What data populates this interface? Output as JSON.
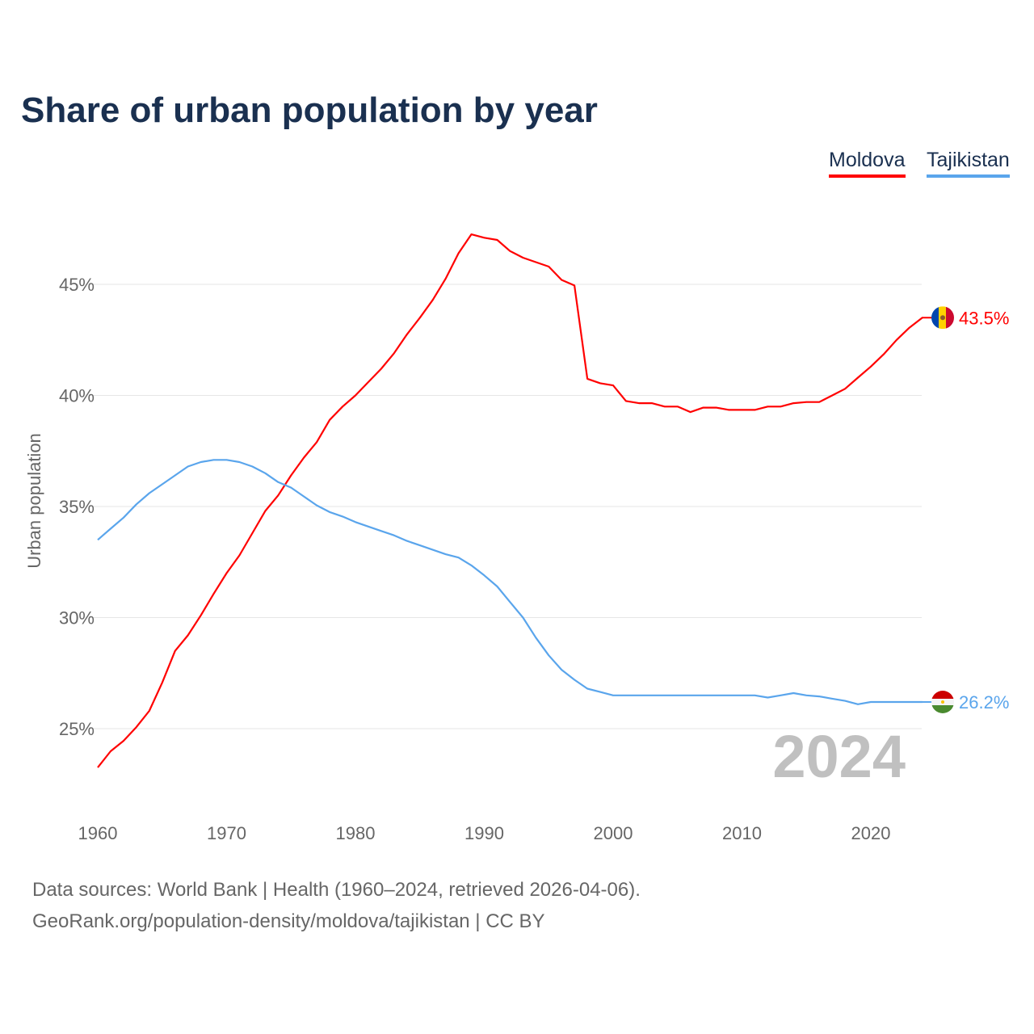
{
  "chart_data": {
    "type": "line",
    "title": "Share of urban population by year",
    "xlabel": "",
    "ylabel": "Urban population",
    "xlim": [
      1960,
      2024
    ],
    "ylim": [
      22,
      48
    ],
    "x_ticks": [
      "1960",
      "1970",
      "1980",
      "1990",
      "2000",
      "2010",
      "2020"
    ],
    "y_ticks": [
      "25%",
      "30%",
      "35%",
      "40%",
      "45%"
    ],
    "y_tick_values": [
      25,
      30,
      35,
      40,
      45
    ],
    "grid": true,
    "legend_placement": "top-right",
    "year_watermark": "2024",
    "x": [
      1960,
      1961,
      1962,
      1963,
      1964,
      1965,
      1966,
      1967,
      1968,
      1969,
      1970,
      1971,
      1972,
      1973,
      1974,
      1975,
      1976,
      1977,
      1978,
      1979,
      1980,
      1981,
      1982,
      1983,
      1984,
      1985,
      1986,
      1987,
      1988,
      1989,
      1990,
      1991,
      1992,
      1993,
      1994,
      1995,
      1996,
      1997,
      1998,
      1999,
      2000,
      2001,
      2002,
      2003,
      2004,
      2005,
      2006,
      2007,
      2008,
      2009,
      2010,
      2011,
      2012,
      2013,
      2014,
      2015,
      2016,
      2017,
      2018,
      2019,
      2020,
      2021,
      2022,
      2023,
      2024
    ],
    "series": [
      {
        "name": "Moldova",
        "color": "#ff0000",
        "end_label": "43.5%",
        "values": [
          23.25,
          23.98,
          24.45,
          25.07,
          25.8,
          27.07,
          28.5,
          29.2,
          30.1,
          31.07,
          32.0,
          32.8,
          33.8,
          34.8,
          35.5,
          36.4,
          37.2,
          37.9,
          38.9,
          39.5,
          40.0,
          40.6,
          41.2,
          41.9,
          42.75,
          43.5,
          44.3,
          45.25,
          46.4,
          47.25,
          47.1,
          47.0,
          46.5,
          46.2,
          46.0,
          45.8,
          45.2,
          44.95,
          40.75,
          40.55,
          40.45,
          39.75,
          39.65,
          39.65,
          39.5,
          39.5,
          39.25,
          39.45,
          39.45,
          39.35,
          39.35,
          39.35,
          39.5,
          39.5,
          39.65,
          39.7,
          39.7,
          40.0,
          40.3,
          40.8,
          41.3,
          41.85,
          42.5,
          43.05,
          43.5
        ]
      },
      {
        "name": "Tajikistan",
        "color": "#5aa5ec",
        "end_label": "26.2%",
        "values": [
          33.5,
          34.0,
          34.5,
          35.1,
          35.6,
          36.0,
          36.4,
          36.8,
          37.0,
          37.1,
          37.1,
          37.0,
          36.8,
          36.5,
          36.1,
          35.85,
          35.45,
          35.05,
          34.75,
          34.55,
          34.3,
          34.1,
          33.9,
          33.7,
          33.45,
          33.25,
          33.05,
          32.85,
          32.7,
          32.35,
          31.9,
          31.4,
          30.7,
          30.0,
          29.1,
          28.3,
          27.65,
          27.2,
          26.8,
          26.65,
          26.5,
          26.5,
          26.5,
          26.5,
          26.5,
          26.5,
          26.5,
          26.5,
          26.5,
          26.5,
          26.5,
          26.5,
          26.4,
          26.5,
          26.6,
          26.5,
          26.45,
          26.35,
          26.25,
          26.1,
          26.2,
          26.2,
          26.2,
          26.2,
          26.2
        ]
      }
    ]
  },
  "footer": {
    "line1": "Data sources: World Bank | Health (1960–2024, retrieved 2026-04-06).",
    "line2": "GeoRank.org/population-density/moldova/tajikistan | CC BY"
  }
}
